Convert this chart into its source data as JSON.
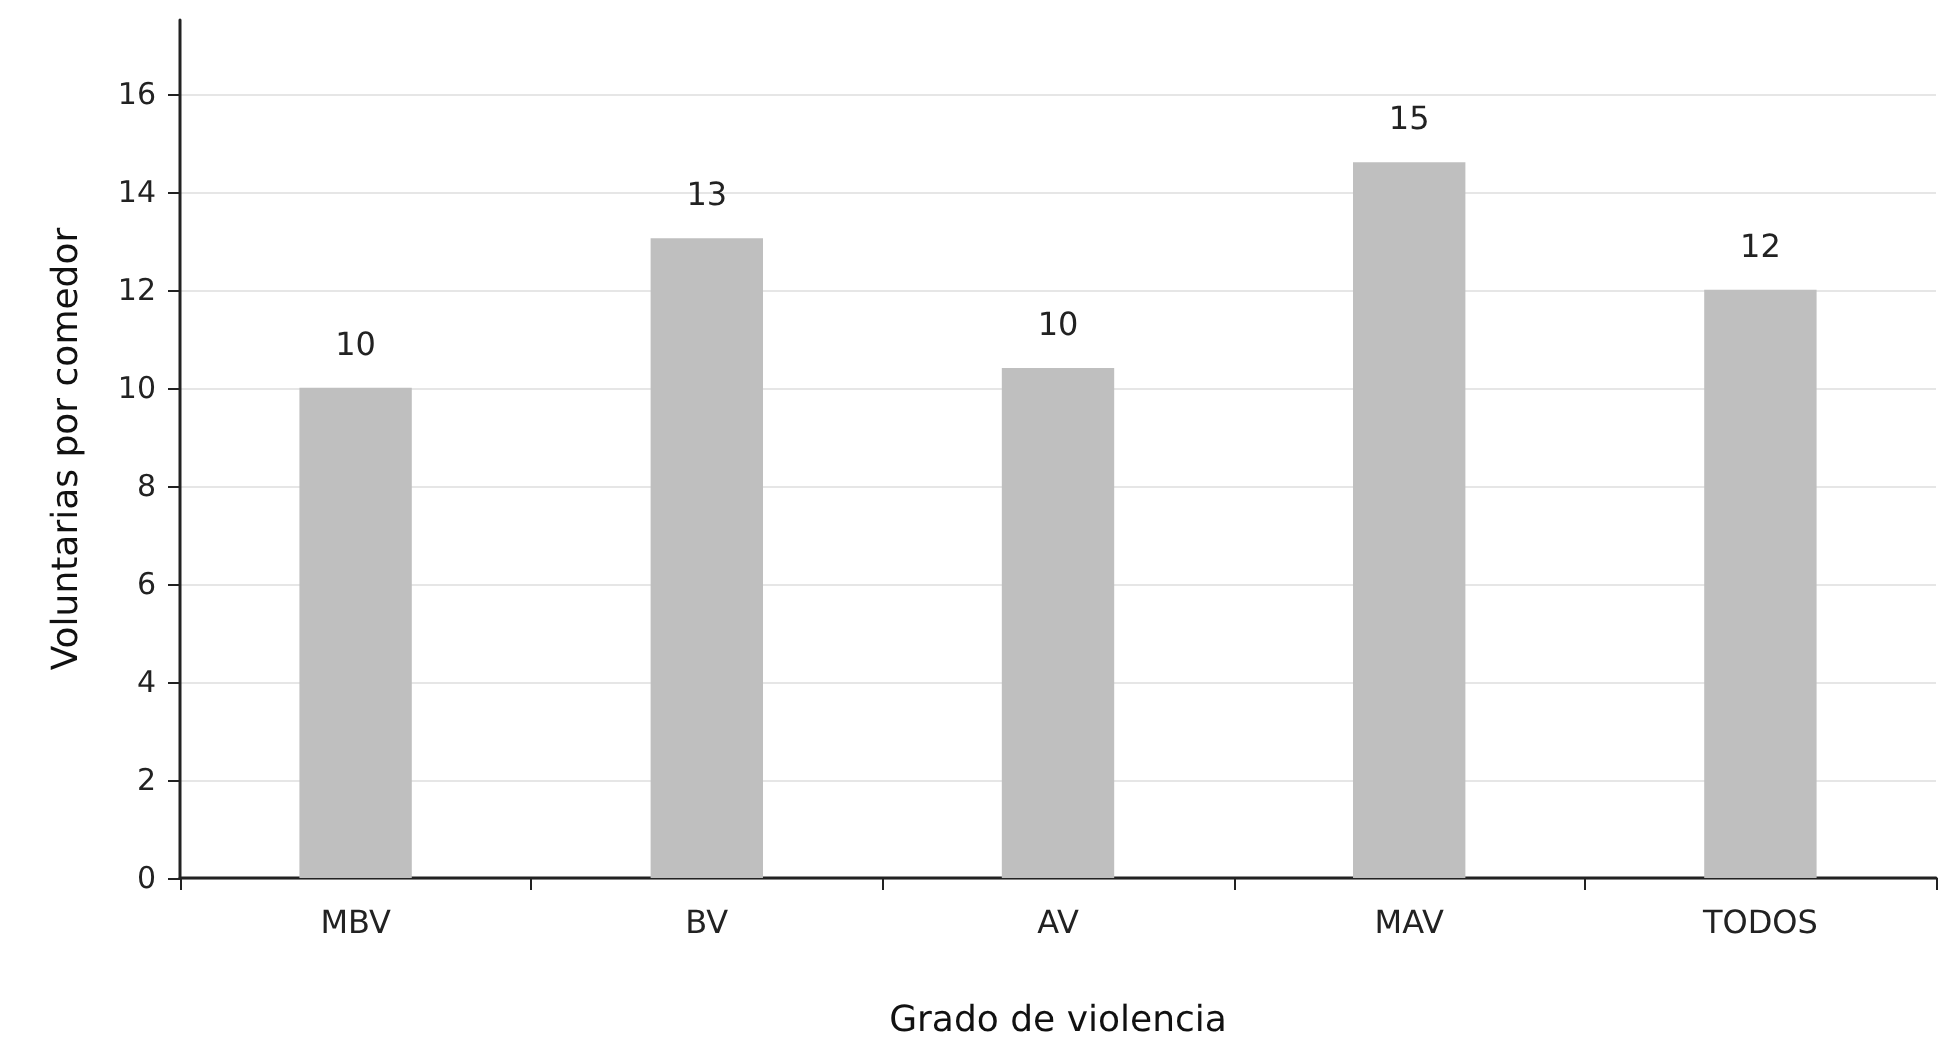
{
  "chart_data": {
    "type": "bar",
    "xlabel": "Grado de violencia",
    "ylabel": "Voluntarias por comedor",
    "categories": [
      "MBV",
      "BV",
      "AV",
      "MAV",
      "TODOS"
    ],
    "values": [
      10.0,
      13.05,
      10.4,
      14.6,
      12.0
    ],
    "value_labels": [
      "10",
      "13",
      "10",
      "15",
      "12"
    ],
    "color": "#bfbfbf",
    "ylim": [
      0,
      17.5
    ],
    "yticks": [
      0,
      2,
      4,
      6,
      8,
      10,
      12,
      14,
      16
    ],
    "grid": "y"
  }
}
